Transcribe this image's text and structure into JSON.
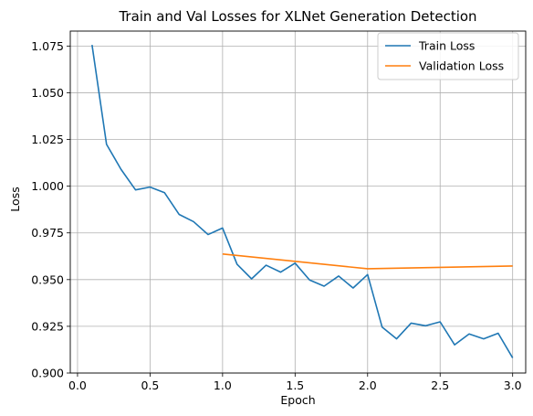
{
  "chart_data": {
    "type": "line",
    "title": "Train and Val Losses for XLNet Generation Detection",
    "xlabel": "Epoch",
    "ylabel": "Loss",
    "xlim": [
      -0.05,
      3.09
    ],
    "ylim": [
      0.9,
      1.083
    ],
    "xticks": [
      0.0,
      0.5,
      1.0,
      1.5,
      2.0,
      2.5,
      3.0
    ],
    "xtick_labels": [
      "0.0",
      "0.5",
      "1.0",
      "1.5",
      "2.0",
      "2.5",
      "3.0"
    ],
    "yticks": [
      0.9,
      0.925,
      0.95,
      0.975,
      1.0,
      1.025,
      1.05,
      1.075
    ],
    "ytick_labels": [
      "0.900",
      "0.925",
      "0.950",
      "0.975",
      "1.000",
      "1.025",
      "1.050",
      "1.075"
    ],
    "grid": true,
    "legend_position": "top-right",
    "series": [
      {
        "name": "Train Loss",
        "color": "#1f77b4",
        "x": [
          0.1,
          0.2,
          0.3,
          0.4,
          0.5,
          0.6,
          0.7,
          0.8,
          0.9,
          1.0,
          1.1,
          1.2,
          1.3,
          1.4,
          1.5,
          1.6,
          1.7,
          1.8,
          1.9,
          2.0,
          2.1,
          2.2,
          2.3,
          2.4,
          2.5,
          2.6,
          2.7,
          2.8,
          2.9,
          3.0
        ],
        "values": [
          1.0756,
          1.0224,
          1.009,
          0.998,
          0.9995,
          0.9965,
          0.9849,
          0.981,
          0.9741,
          0.9776,
          0.9582,
          0.9504,
          0.9577,
          0.954,
          0.9588,
          0.9498,
          0.9465,
          0.9519,
          0.9455,
          0.9527,
          0.9246,
          0.9183,
          0.9267,
          0.9253,
          0.9274,
          0.9151,
          0.9209,
          0.9183,
          0.9213,
          0.9081
        ]
      },
      {
        "name": "Validation Loss",
        "color": "#ff7f0e",
        "x": [
          1.0,
          2.0,
          3.0
        ],
        "values": [
          0.9637,
          0.9558,
          0.9573
        ]
      }
    ]
  }
}
